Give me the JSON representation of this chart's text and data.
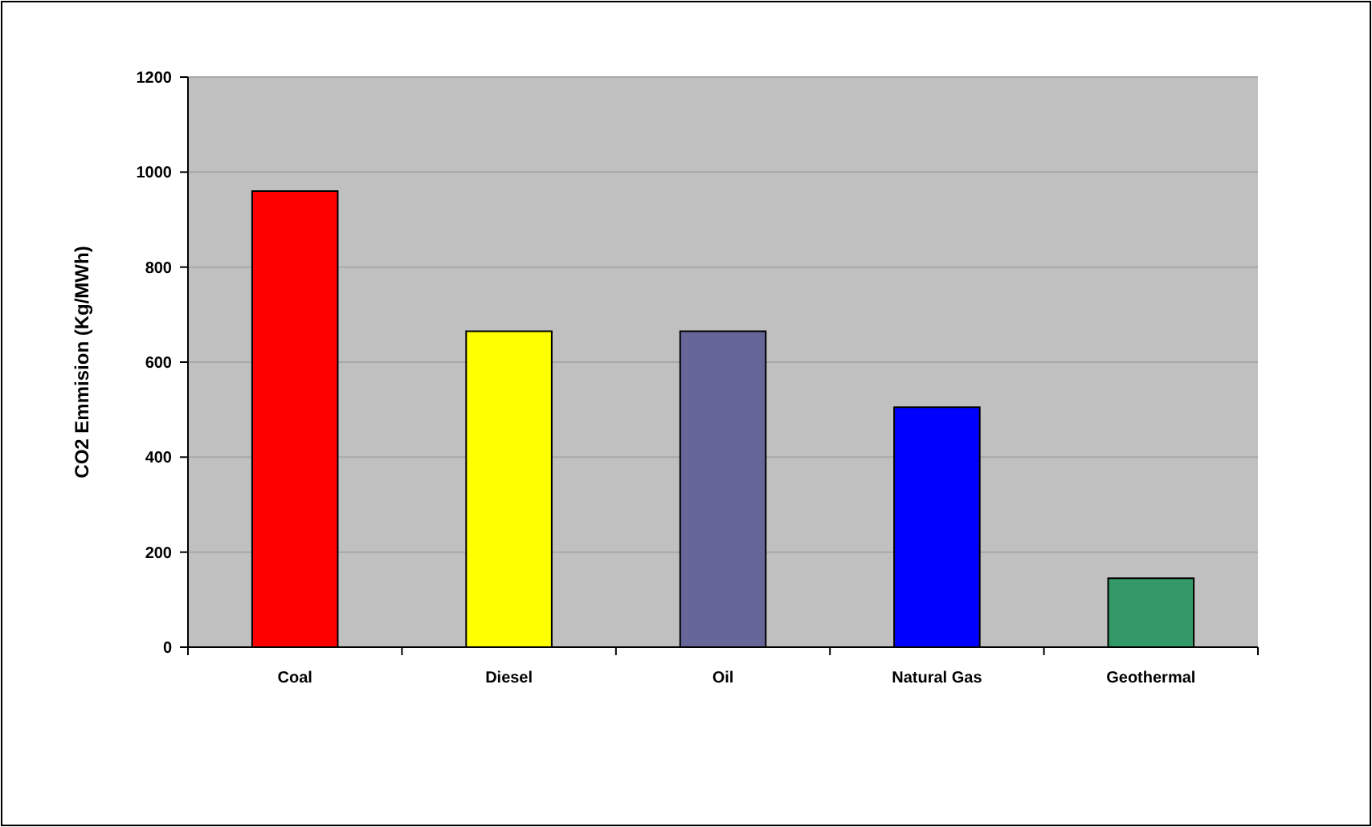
{
  "chart_data": {
    "type": "bar",
    "ylabel": "CO2 Emmision (Kg/MWh)",
    "categories": [
      "Coal",
      "Diesel",
      "Oil",
      "Natural Gas",
      "Geothermal"
    ],
    "values": [
      960,
      665,
      665,
      505,
      145
    ],
    "colors": [
      "#ff0000",
      "#ffff00",
      "#666699",
      "#0000ff",
      "#339966"
    ],
    "ylim": [
      0,
      1200
    ],
    "yticks": [
      0,
      200,
      400,
      600,
      800,
      1000,
      1200
    ],
    "grid": "y"
  }
}
